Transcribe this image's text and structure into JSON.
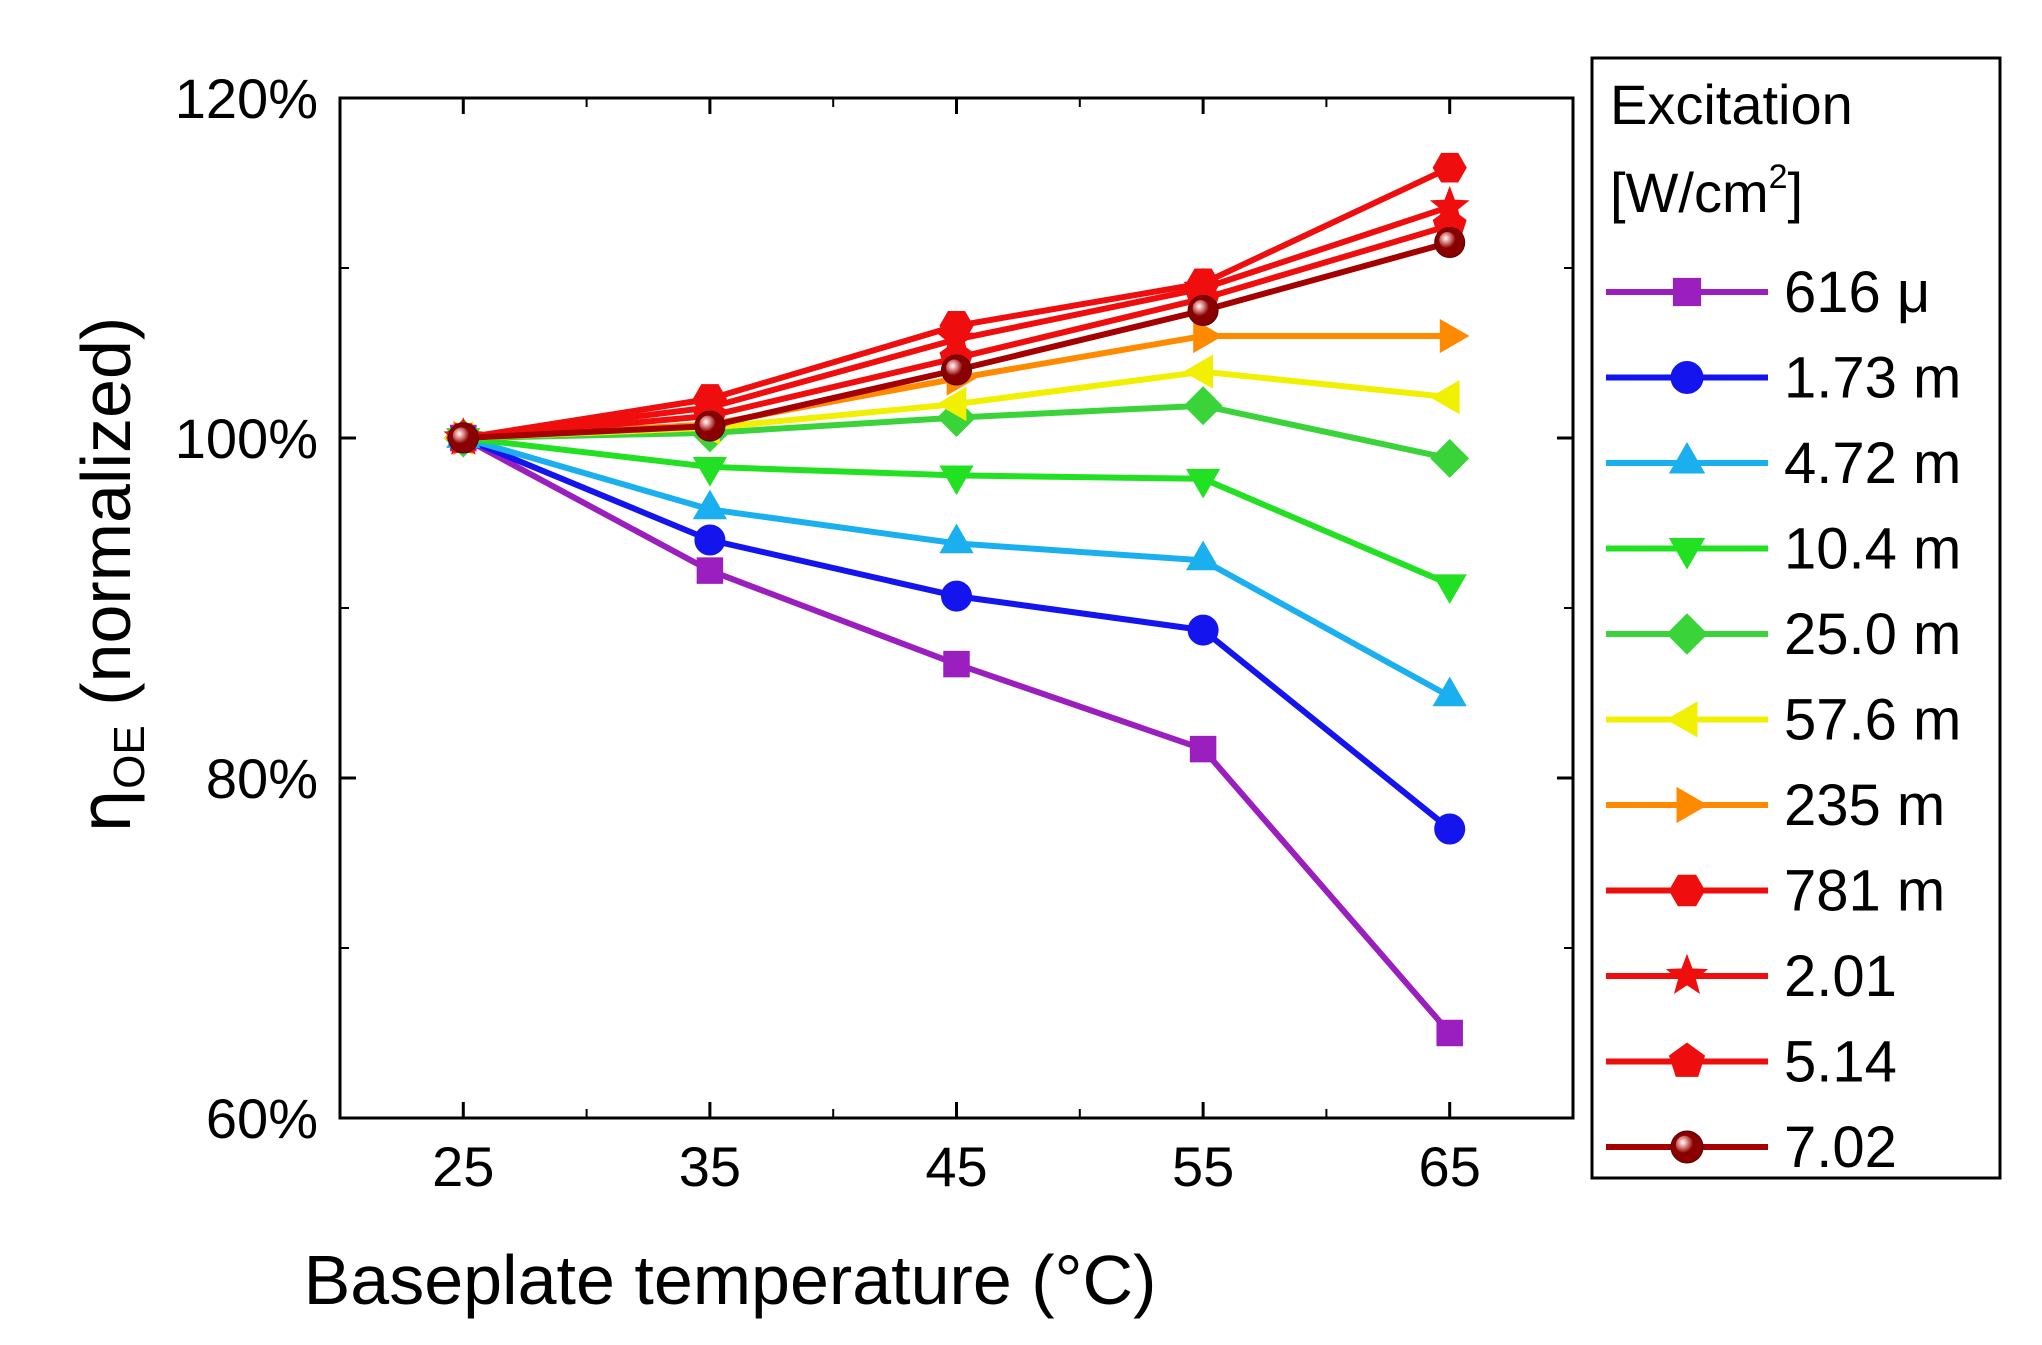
{
  "chart_data": {
    "type": "line",
    "title": "",
    "xlabel": "Baseplate temperature (°C)",
    "ylabel_symbol": "η",
    "ylabel_subscript": "OE",
    "ylabel_rest": "(normalized)",
    "x": [
      25,
      35,
      45,
      55,
      65
    ],
    "xlim": [
      20,
      70
    ],
    "ylim": [
      0.6,
      1.2
    ],
    "x_ticks": [
      25,
      35,
      45,
      55,
      65
    ],
    "x_tick_labels": [
      "25",
      "35",
      "45",
      "55",
      "65"
    ],
    "y_ticks": [
      0.6,
      0.8,
      1.0,
      1.2
    ],
    "y_tick_labels": [
      "60%",
      "80%",
      "100%",
      "120%"
    ],
    "legend": {
      "title_line1": "Excitation",
      "title_line2_pre": "[W/cm",
      "title_line2_sup": "2",
      "title_line2_post": "]",
      "placement": "right-outside"
    },
    "series": [
      {
        "name": "616 μ",
        "color": "#9b1fbf",
        "marker": "square",
        "values": [
          1.0,
          0.922,
          0.867,
          0.817,
          0.65
        ]
      },
      {
        "name": "1.73 m",
        "color": "#1414ef",
        "marker": "circle",
        "values": [
          1.0,
          0.94,
          0.907,
          0.887,
          0.77
        ]
      },
      {
        "name": "4.72 m",
        "color": "#1aafef",
        "marker": "triangle-up",
        "values": [
          1.0,
          0.958,
          0.938,
          0.928,
          0.848
        ]
      },
      {
        "name": "10.4 m",
        "color": "#22e022",
        "marker": "triangle-down",
        "values": [
          1.0,
          0.983,
          0.978,
          0.976,
          0.914
        ]
      },
      {
        "name": "25.0 m",
        "color": "#3ad43a",
        "marker": "diamond",
        "values": [
          1.0,
          1.003,
          1.012,
          1.019,
          0.988
        ]
      },
      {
        "name": "57.6 m",
        "color": "#f0f000",
        "marker": "triangle-left",
        "values": [
          1.0,
          1.006,
          1.02,
          1.039,
          1.024
        ]
      },
      {
        "name": "235 m",
        "color": "#ff8a00",
        "marker": "triangle-right",
        "values": [
          1.0,
          1.008,
          1.035,
          1.06,
          1.06
        ]
      },
      {
        "name": "781 m",
        "color": "#ef0d0d",
        "marker": "hexagon",
        "values": [
          1.0,
          1.023,
          1.066,
          1.091,
          1.159
        ]
      },
      {
        "name": "2.01",
        "color": "#ef0d0d",
        "marker": "star",
        "values": [
          1.0,
          1.018,
          1.058,
          1.088,
          1.136
        ]
      },
      {
        "name": "5.14",
        "color": "#ef0d0d",
        "marker": "pentagon",
        "values": [
          1.0,
          1.013,
          1.047,
          1.082,
          1.125
        ]
      },
      {
        "name": "7.02",
        "color": "#a50000",
        "marker": "sphere",
        "values": [
          1.0,
          1.007,
          1.04,
          1.075,
          1.115
        ]
      }
    ]
  }
}
